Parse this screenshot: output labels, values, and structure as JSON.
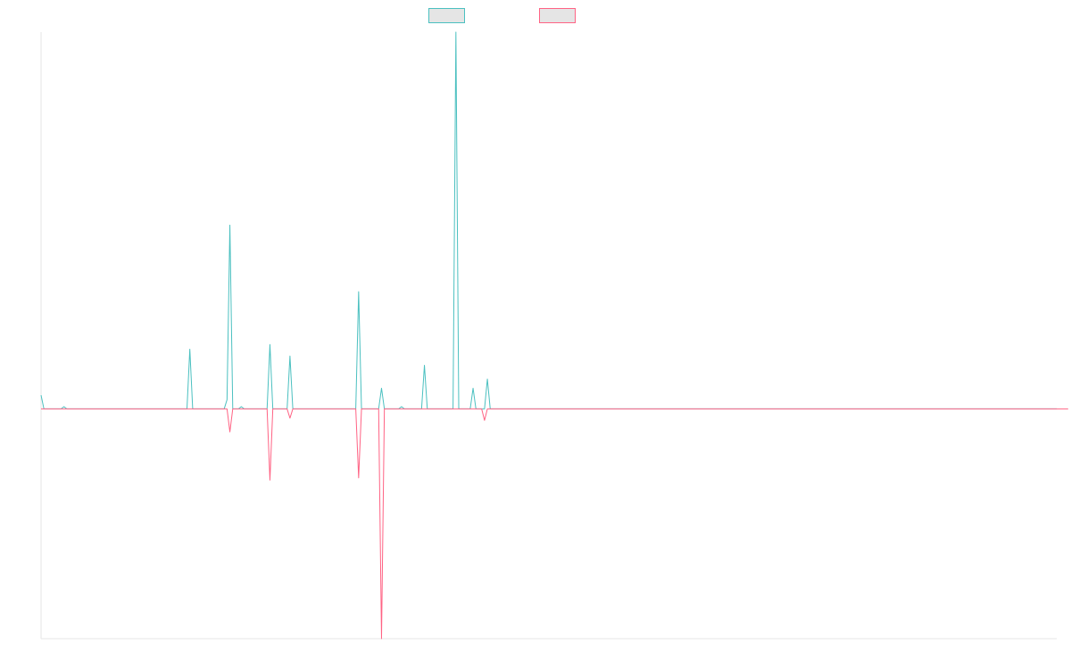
{
  "chart_data": {
    "type": "line",
    "title": "",
    "xlabel": "",
    "ylabel": "",
    "ylim": [
      -1.0,
      1.64
    ],
    "grid": false,
    "legend": "top-center",
    "series": [
      {
        "color": "#4bc0c0",
        "fill": "#e5e5e5",
        "values": [
          0.06,
          0,
          0,
          0,
          0,
          0,
          0,
          0,
          0.01,
          0,
          0,
          0,
          0,
          0,
          0,
          0,
          0,
          0,
          0,
          0,
          0,
          0,
          0,
          0,
          0,
          0,
          0,
          0,
          0,
          0,
          0,
          0,
          0,
          0,
          0,
          0,
          0,
          0,
          0,
          0,
          0,
          0,
          0,
          0,
          0,
          0,
          0,
          0,
          0,
          0,
          0,
          0,
          0.26,
          0,
          0,
          0,
          0,
          0,
          0,
          0,
          0,
          0,
          0,
          0,
          0,
          0.04,
          0.8,
          0,
          0,
          0,
          0.01,
          0,
          0,
          0,
          0,
          0,
          0,
          0,
          0,
          0,
          0.28,
          0,
          0,
          0,
          0,
          0,
          0,
          0.23,
          0,
          0,
          0,
          0,
          0,
          0,
          0,
          0,
          0,
          0,
          0,
          0,
          0,
          0,
          0,
          0,
          0,
          0,
          0,
          0,
          0,
          0,
          0,
          0.51,
          0,
          0,
          0,
          0,
          0,
          0,
          0,
          0.09,
          0,
          0,
          0,
          0,
          0,
          0,
          0.01,
          0,
          0,
          0,
          0,
          0,
          0,
          0,
          0.19,
          0,
          0,
          0,
          0,
          0,
          0,
          0,
          0,
          0,
          0,
          1.64,
          0,
          0,
          0,
          0,
          0,
          0.09,
          0,
          0,
          0,
          0,
          0.13,
          0,
          0,
          0,
          0,
          0,
          0,
          0,
          0,
          0,
          0,
          0,
          0,
          0,
          0,
          0,
          0,
          0,
          0,
          0,
          0,
          0,
          0,
          0,
          0,
          0,
          0,
          0,
          0,
          0,
          0,
          0,
          0,
          0,
          0,
          0,
          0,
          0,
          0,
          0,
          0,
          0,
          0,
          0,
          0,
          0,
          0,
          0,
          0,
          0,
          0,
          0,
          0,
          0,
          0,
          0,
          0,
          0,
          0,
          0,
          0,
          0,
          0,
          0,
          0,
          0,
          0,
          0,
          0,
          0,
          0,
          0,
          0,
          0,
          0,
          0,
          0,
          0,
          0,
          0,
          0,
          0,
          0,
          0,
          0,
          0,
          0,
          0,
          0,
          0,
          0,
          0,
          0,
          0,
          0,
          0,
          0,
          0,
          0,
          0,
          0,
          0,
          0,
          0,
          0,
          0,
          0,
          0,
          0,
          0,
          0,
          0,
          0,
          0,
          0,
          0,
          0,
          0,
          0,
          0,
          0,
          0,
          0,
          0,
          0,
          0,
          0,
          0,
          0,
          0,
          0,
          0,
          0,
          0,
          0,
          0,
          0,
          0,
          0,
          0,
          0,
          0,
          0,
          0,
          0,
          0,
          0,
          0,
          0,
          0,
          0,
          0,
          0,
          0,
          0,
          0,
          0,
          0,
          0,
          0,
          0,
          0,
          0,
          0,
          0,
          0,
          0,
          0,
          0,
          0,
          0,
          0,
          0,
          0,
          0,
          0,
          0,
          0,
          0,
          0,
          0,
          0,
          0,
          0,
          0,
          0,
          0,
          0,
          0,
          0,
          0,
          0,
          0,
          0,
          0,
          0,
          0,
          0,
          0,
          0
        ]
      },
      {
        "color": "#ff6384",
        "fill": "#e5e5e5",
        "values": [
          0,
          0,
          0,
          0,
          0,
          0,
          0,
          0,
          0,
          0,
          0,
          0,
          0,
          0,
          0,
          0,
          0,
          0,
          0,
          0,
          0,
          0,
          0,
          0,
          0,
          0,
          0,
          0,
          0,
          0,
          0,
          0,
          0,
          0,
          0,
          0,
          0,
          0,
          0,
          0,
          0,
          0,
          0,
          0,
          0,
          0,
          0,
          0,
          0,
          0,
          0,
          0,
          0,
          0,
          0,
          0,
          0,
          0,
          0,
          0,
          0,
          0,
          0,
          0,
          0,
          0,
          -0.1,
          0,
          0,
          0,
          0,
          0,
          0,
          0,
          0,
          0,
          0,
          0,
          0,
          0,
          -0.31,
          0,
          0,
          0,
          0,
          0,
          0,
          -0.04,
          0,
          0,
          0,
          0,
          0,
          0,
          0,
          0,
          0,
          0,
          0,
          0,
          0,
          0,
          0,
          0,
          0,
          0,
          0,
          0,
          0,
          0,
          0,
          -0.3,
          0,
          0,
          0,
          0,
          0,
          0,
          0,
          -1.0,
          0,
          0,
          0,
          0,
          0,
          0,
          0,
          0,
          0,
          0,
          0,
          0,
          0,
          0,
          0,
          0,
          0,
          0,
          0,
          0,
          0,
          0,
          0,
          0,
          0,
          0,
          0,
          0,
          0,
          0,
          0,
          0,
          0,
          0,
          0,
          -0.05,
          0,
          0,
          0,
          0,
          0,
          0,
          0,
          0,
          0,
          0,
          0,
          0,
          0,
          0,
          0,
          0,
          0,
          0,
          0,
          0,
          0,
          0,
          0,
          0,
          0,
          0,
          0,
          0,
          0,
          0,
          0,
          0,
          0,
          0,
          0,
          0,
          0,
          0,
          0,
          0,
          0,
          0,
          0,
          0,
          0,
          0,
          0,
          0,
          0,
          0,
          0,
          0,
          0,
          0,
          0,
          0,
          0,
          0,
          0,
          0,
          0,
          0,
          0,
          0,
          0,
          0,
          0,
          0,
          0,
          0,
          0,
          0,
          0,
          0,
          0,
          0,
          0,
          0,
          0,
          0,
          0,
          0,
          0,
          0,
          0,
          0,
          0,
          0,
          0,
          0,
          0,
          0,
          0,
          0,
          0,
          0,
          0,
          0,
          0,
          0,
          0,
          0,
          0,
          0,
          0,
          0,
          0,
          0,
          0,
          0,
          0,
          0,
          0,
          0,
          0,
          0,
          0,
          0,
          0,
          0,
          0,
          0,
          0,
          0,
          0,
          0,
          0,
          0,
          0,
          0,
          0,
          0,
          0,
          0,
          0,
          0,
          0,
          0,
          0,
          0,
          0,
          0,
          0,
          0,
          0,
          0,
          0,
          0,
          0,
          0,
          0,
          0,
          0,
          0,
          0,
          0,
          0,
          0,
          0,
          0,
          0,
          0,
          0,
          0,
          0,
          0,
          0,
          0,
          0,
          0,
          0,
          0,
          0,
          0,
          0,
          0,
          0,
          0,
          0,
          0,
          0,
          0,
          0,
          0,
          0,
          0,
          0,
          0,
          0,
          0,
          0,
          0,
          0,
          0,
          0,
          0,
          0,
          0,
          0,
          0,
          0,
          0,
          0,
          0
        ]
      }
    ]
  }
}
